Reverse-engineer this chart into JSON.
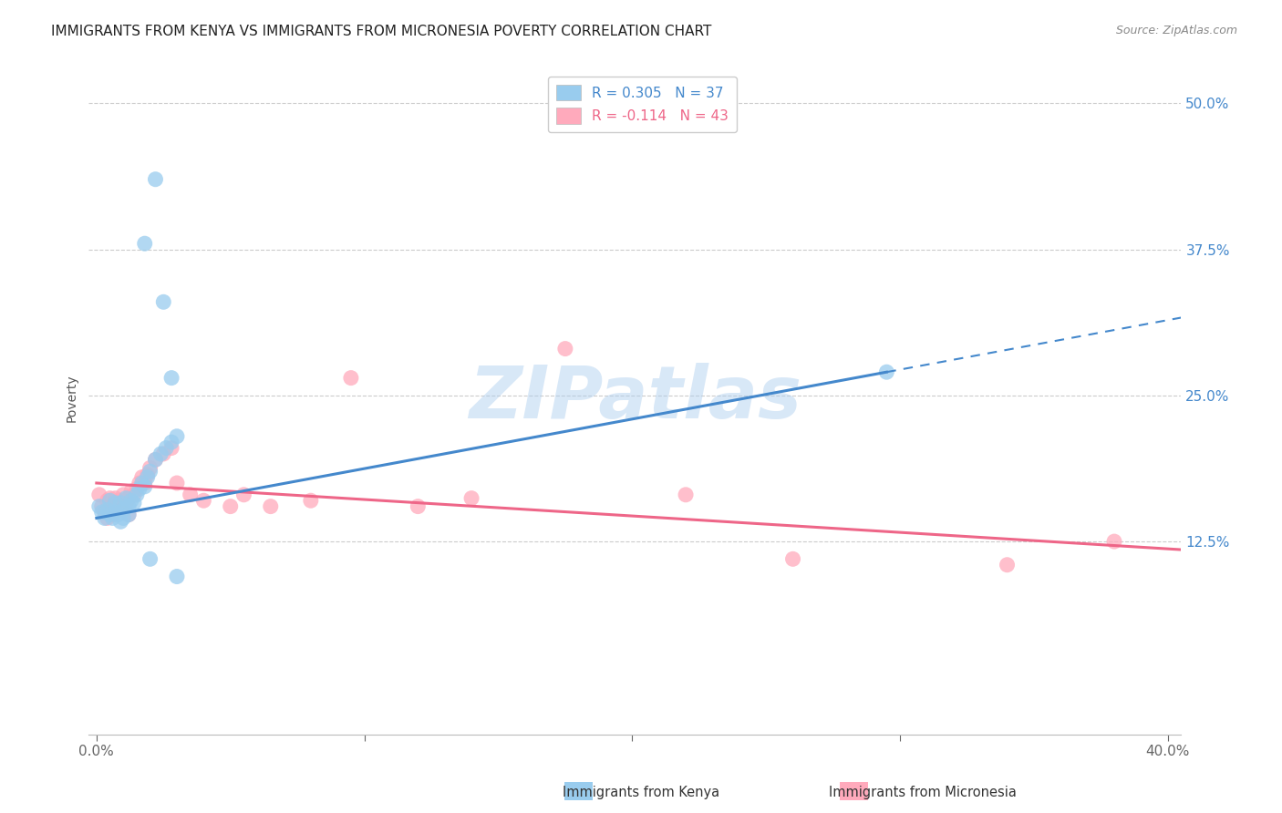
{
  "title": "IMMIGRANTS FROM KENYA VS IMMIGRANTS FROM MICRONESIA POVERTY CORRELATION CHART",
  "source": "Source: ZipAtlas.com",
  "ylabel": "Poverty",
  "ytick_vals": [
    0.0,
    0.125,
    0.25,
    0.375,
    0.5
  ],
  "ytick_labels": [
    "",
    "12.5%",
    "25.0%",
    "37.5%",
    "50.0%"
  ],
  "xlim": [
    -0.003,
    0.405
  ],
  "ylim": [
    -0.04,
    0.535
  ],
  "kenya_R": 0.305,
  "kenya_N": 37,
  "micronesia_R": -0.114,
  "micronesia_N": 43,
  "kenya_color": "#99CCEE",
  "micronesia_color": "#FFAABC",
  "kenya_line_color": "#4488CC",
  "micronesia_line_color": "#EE6688",
  "kenya_scatter_x": [
    0.001,
    0.002,
    0.003,
    0.004,
    0.005,
    0.005,
    0.006,
    0.007,
    0.007,
    0.008,
    0.009,
    0.009,
    0.01,
    0.01,
    0.011,
    0.012,
    0.012,
    0.013,
    0.014,
    0.015,
    0.016,
    0.017,
    0.018,
    0.019,
    0.02,
    0.022,
    0.024,
    0.026,
    0.028,
    0.03,
    0.018,
    0.022,
    0.025,
    0.028,
    0.02,
    0.03,
    0.295
  ],
  "kenya_scatter_y": [
    0.155,
    0.15,
    0.145,
    0.152,
    0.16,
    0.148,
    0.145,
    0.15,
    0.158,
    0.148,
    0.142,
    0.158,
    0.152,
    0.145,
    0.162,
    0.155,
    0.148,
    0.16,
    0.158,
    0.165,
    0.17,
    0.175,
    0.172,
    0.18,
    0.185,
    0.195,
    0.2,
    0.205,
    0.21,
    0.215,
    0.38,
    0.435,
    0.33,
    0.265,
    0.11,
    0.095,
    0.27
  ],
  "micronesia_scatter_x": [
    0.001,
    0.002,
    0.003,
    0.004,
    0.004,
    0.005,
    0.006,
    0.006,
    0.007,
    0.007,
    0.008,
    0.009,
    0.01,
    0.01,
    0.011,
    0.012,
    0.012,
    0.013,
    0.014,
    0.015,
    0.016,
    0.017,
    0.018,
    0.019,
    0.02,
    0.022,
    0.025,
    0.028,
    0.03,
    0.035,
    0.04,
    0.05,
    0.055,
    0.065,
    0.08,
    0.095,
    0.12,
    0.14,
    0.175,
    0.22,
    0.26,
    0.34,
    0.38
  ],
  "micronesia_scatter_y": [
    0.165,
    0.155,
    0.15,
    0.16,
    0.145,
    0.162,
    0.155,
    0.148,
    0.158,
    0.162,
    0.155,
    0.16,
    0.165,
    0.155,
    0.158,
    0.162,
    0.148,
    0.168,
    0.165,
    0.17,
    0.175,
    0.18,
    0.175,
    0.182,
    0.188,
    0.195,
    0.2,
    0.205,
    0.175,
    0.165,
    0.16,
    0.155,
    0.165,
    0.155,
    0.16,
    0.265,
    0.155,
    0.162,
    0.29,
    0.165,
    0.11,
    0.105,
    0.125
  ],
  "kenya_line_x0": 0.0,
  "kenya_line_y0": 0.145,
  "kenya_line_x1": 0.295,
  "kenya_line_y1": 0.27,
  "kenya_line_solid_end": 0.295,
  "kenya_line_dash_end": 0.405,
  "micro_line_x0": 0.0,
  "micro_line_y0": 0.175,
  "micro_line_x1": 0.405,
  "micro_line_y1": 0.118,
  "watermark": "ZIPatlas",
  "watermark_color": "#AACCEE",
  "background_color": "#FFFFFF",
  "title_fontsize": 11,
  "axis_label_fontsize": 10,
  "tick_fontsize": 11,
  "legend_fontsize": 11,
  "grid_color": "#CCCCCC",
  "xticks": [
    0.0,
    0.1,
    0.2,
    0.3,
    0.4
  ],
  "xtick_labels_show": [
    "0.0%",
    "",
    "",
    "",
    "40.0%"
  ]
}
